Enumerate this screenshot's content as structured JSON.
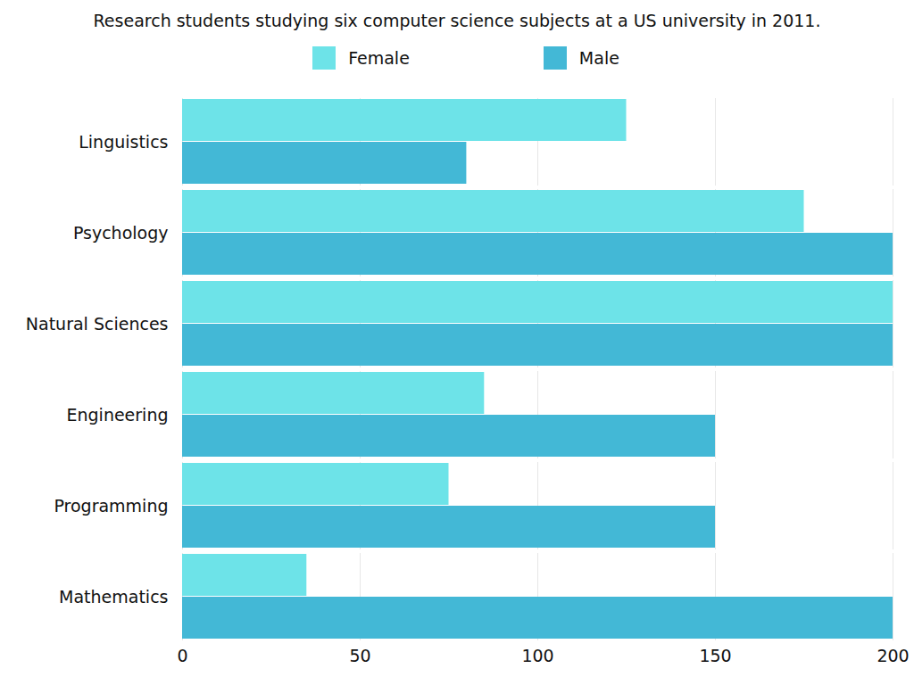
{
  "chart_data": {
    "type": "bar",
    "title": "Research students studying six computer science subjects at a US university in 2011.",
    "orientation": "horizontal",
    "categories": [
      "Linguistics",
      "Psychology",
      "Natural Sciences",
      "Engineering",
      "Programming",
      "Mathematics"
    ],
    "series": [
      {
        "name": "Female",
        "color": "#6de3e8",
        "values": [
          125,
          175,
          200,
          85,
          75,
          35
        ]
      },
      {
        "name": "Male",
        "color": "#43b8d6",
        "values": [
          80,
          200,
          200,
          150,
          150,
          200
        ]
      }
    ],
    "xlim": [
      0,
      200
    ],
    "xticks": [
      0,
      50,
      100,
      150,
      200
    ],
    "grid": true,
    "legend": "top"
  }
}
